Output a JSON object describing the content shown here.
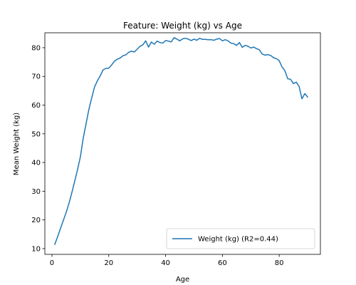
{
  "chart_data": {
    "type": "line",
    "title": "Feature: Weight (kg) vs Age",
    "xlabel": "Age",
    "ylabel": "Mean Weight (kg)",
    "xlim": [
      -2.5,
      94.5
    ],
    "ylim": [
      8,
      85.2
    ],
    "xticks": [
      0,
      20,
      40,
      60,
      80
    ],
    "yticks": [
      10,
      20,
      30,
      40,
      50,
      60,
      70,
      80
    ],
    "grid": false,
    "legend_position": "lower-right",
    "series": [
      {
        "name": "Weight (kg) (R2=0.44)",
        "color": "#1f77b4",
        "x": [
          1,
          2,
          3,
          4,
          5,
          6,
          7,
          8,
          9,
          10,
          11,
          12,
          13,
          14,
          15,
          16,
          17,
          18,
          19,
          20,
          21,
          22,
          23,
          24,
          25,
          26,
          27,
          28,
          29,
          30,
          31,
          32,
          33,
          34,
          35,
          36,
          37,
          38,
          39,
          40,
          41,
          42,
          43,
          44,
          45,
          46,
          47,
          48,
          49,
          50,
          51,
          52,
          53,
          54,
          55,
          56,
          57,
          58,
          59,
          60,
          61,
          62,
          63,
          64,
          65,
          66,
          67,
          68,
          69,
          70,
          71,
          72,
          73,
          74,
          75,
          76,
          77,
          78,
          79,
          80,
          81,
          82,
          83,
          84,
          85,
          86,
          87,
          88,
          89,
          90
        ],
        "y": [
          11.5,
          14.2,
          17.0,
          19.8,
          22.6,
          25.8,
          29.5,
          33.5,
          37.5,
          42.0,
          48.5,
          53.5,
          58.5,
          62.5,
          66.3,
          68.5,
          70.2,
          72.3,
          72.8,
          72.9,
          74.0,
          75.3,
          76.0,
          76.4,
          77.2,
          77.5,
          78.4,
          78.8,
          78.5,
          79.5,
          80.5,
          81.0,
          82.4,
          80.2,
          82.0,
          81.2,
          82.3,
          81.8,
          81.6,
          82.5,
          82.3,
          82.0,
          83.5,
          83.0,
          82.4,
          83.1,
          83.3,
          83.0,
          82.5,
          83.0,
          82.6,
          83.3,
          82.9,
          82.9,
          82.8,
          82.8,
          82.6,
          83.0,
          83.2,
          82.4,
          82.8,
          82.4,
          81.6,
          81.4,
          80.8,
          81.8,
          80.1,
          80.8,
          80.5,
          79.9,
          80.2,
          79.7,
          79.3,
          77.8,
          77.4,
          77.6,
          77.3,
          76.5,
          76.2,
          75.5,
          73.3,
          72.0,
          69.2,
          69.0,
          67.5,
          68.0,
          66.5,
          62.2,
          64.0,
          62.8
        ]
      }
    ]
  }
}
